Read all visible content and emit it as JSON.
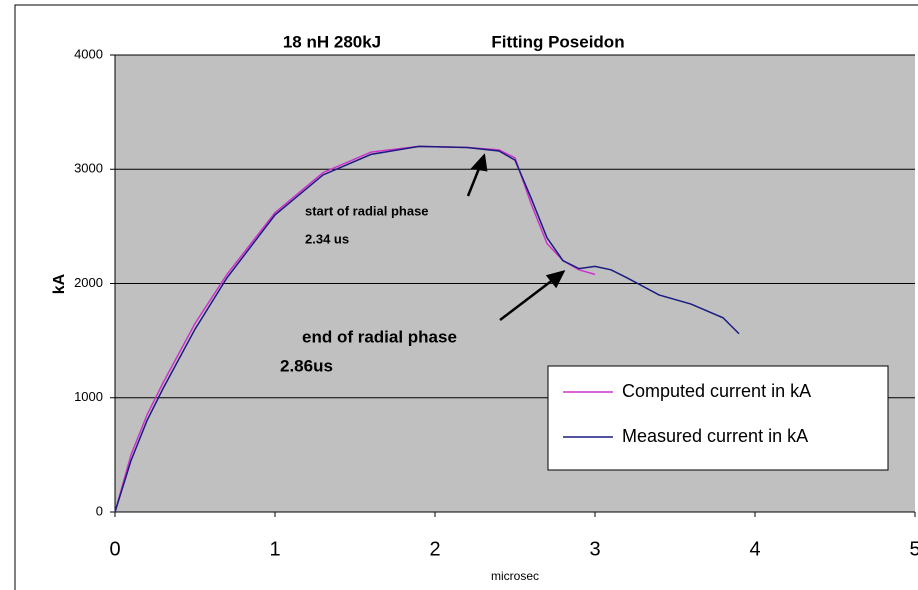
{
  "chart_data": {
    "type": "line",
    "title": "18 nH 280kJ",
    "subtitle": "Fitting Poseidon",
    "xlabel": "microsec",
    "ylabel": "kA",
    "xlim": [
      0,
      5
    ],
    "xticks": [
      0,
      1,
      2,
      3,
      4,
      5
    ],
    "ylim": [
      0,
      4000
    ],
    "yticks": [
      0,
      1000,
      2000,
      3000,
      4000
    ],
    "grid": true,
    "legend": "lower right",
    "series": [
      {
        "name": "Computed current in kA",
        "color": "#cc33cc",
        "x": [
          0,
          0.1,
          0.2,
          0.3,
          0.5,
          0.7,
          1.0,
          1.3,
          1.6,
          1.9,
          2.2,
          2.4,
          2.5,
          2.6,
          2.7,
          2.8,
          2.9,
          3.0
        ],
        "values": [
          0,
          500,
          850,
          1130,
          1650,
          2080,
          2620,
          2970,
          3150,
          3200,
          3190,
          3170,
          3100,
          2700,
          2350,
          2200,
          2120,
          2080
        ]
      },
      {
        "name": "Measured current in kA",
        "color": "#1a1a80",
        "x": [
          0,
          0.1,
          0.2,
          0.3,
          0.5,
          0.7,
          1.0,
          1.3,
          1.6,
          1.9,
          2.2,
          2.4,
          2.5,
          2.6,
          2.7,
          2.8,
          2.9,
          3.0,
          3.1,
          3.2,
          3.4,
          3.6,
          3.8,
          3.9
        ],
        "values": [
          0,
          450,
          800,
          1080,
          1600,
          2050,
          2600,
          2950,
          3130,
          3200,
          3190,
          3160,
          3080,
          2750,
          2400,
          2200,
          2130,
          2150,
          2120,
          2050,
          1900,
          1820,
          1700,
          1560
        ]
      }
    ],
    "annotations": [
      {
        "text": "start of radial phase",
        "time": "2.34 us"
      },
      {
        "text": "end of radial phase",
        "time": "2.86us"
      }
    ]
  }
}
